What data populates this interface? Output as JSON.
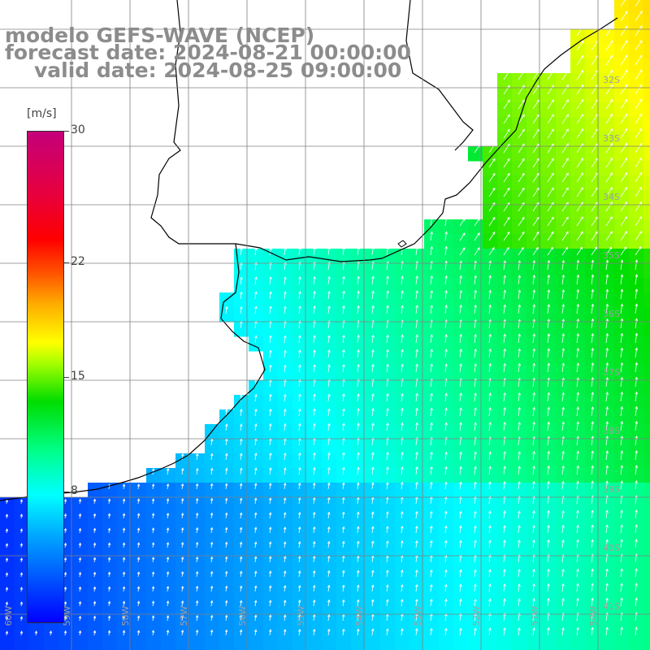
{
  "title": {
    "line1": "modelo GEFS-WAVE (NCEP)",
    "line2": "forecast date: 2024-08-21 00:00:00",
    "line3": "valid date: 2024-08-25 09:00:00"
  },
  "colorbar": {
    "units": "[m/s]",
    "ticks": [
      {
        "label": "30",
        "value": 30
      },
      {
        "label": "22",
        "value": 22
      },
      {
        "label": "15",
        "value": 15
      },
      {
        "label": "8",
        "value": 8
      }
    ],
    "min": 0,
    "max": 30
  },
  "axes": {
    "lon_labels": [
      "60W",
      "59W",
      "58W",
      "57W",
      "56W",
      "55W",
      "54W",
      "53W",
      "52W",
      "51W",
      "50W"
    ],
    "lat_labels": [
      "32S",
      "33S",
      "34S",
      "35S",
      "36S",
      "37S",
      "38S",
      "39S",
      "40S",
      "41S"
    ]
  },
  "colors": {
    "land": "#ffffff",
    "coast": "#000000",
    "grid": "#808080",
    "arrows": "#ffffff",
    "title_text": "#8c8c8c"
  }
}
